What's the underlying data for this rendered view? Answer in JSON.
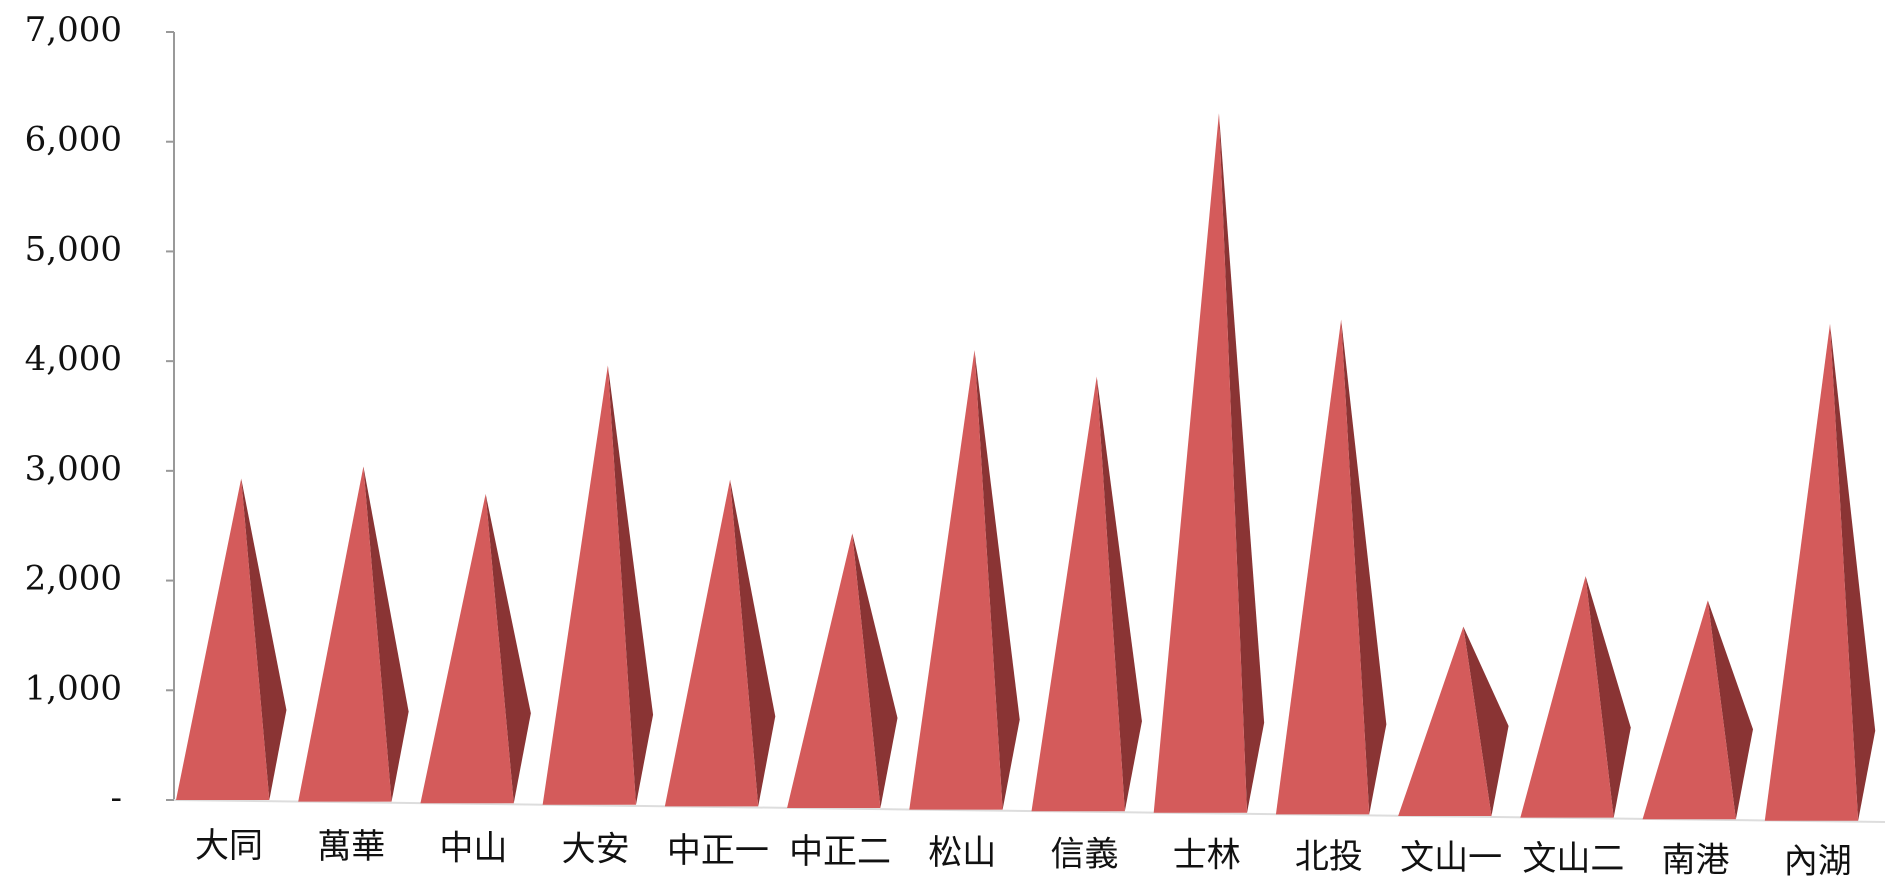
{
  "chart_data": {
    "type": "pyramid",
    "categories": [
      "大同",
      "萬華",
      "中山",
      "大安",
      "中正一",
      "中正二",
      "松山",
      "信義",
      "士林",
      "北投",
      "文山一",
      "文山二",
      "南港",
      "內湖"
    ],
    "values": [
      2930,
      3040,
      2790,
      3960,
      2920,
      2430,
      4100,
      3860,
      6260,
      4380,
      1580,
      2040,
      1820,
      4340
    ],
    "color": "#d45b5b",
    "side_color": "#8a3434",
    "ylim": [
      0,
      7000
    ],
    "yticks": [
      {
        "value": 0,
        "label": "-"
      },
      {
        "value": 1000,
        "label": "1,000"
      },
      {
        "value": 2000,
        "label": "2,000"
      },
      {
        "value": 3000,
        "label": "3,000"
      },
      {
        "value": 4000,
        "label": "4,000"
      },
      {
        "value": 5000,
        "label": "5,000"
      },
      {
        "value": 6000,
        "label": "6,000"
      },
      {
        "value": 7000,
        "label": "7,000"
      }
    ]
  }
}
